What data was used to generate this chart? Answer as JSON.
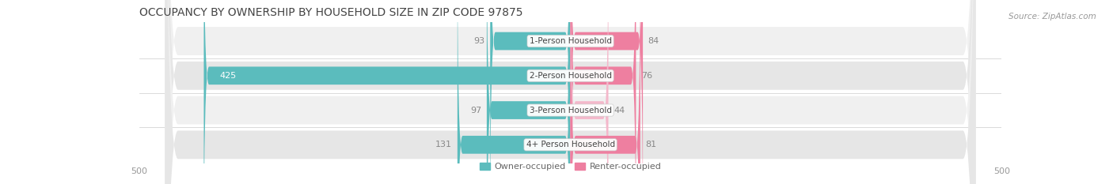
{
  "title": "OCCUPANCY BY OWNERSHIP BY HOUSEHOLD SIZE IN ZIP CODE 97875",
  "source": "Source: ZipAtlas.com",
  "categories": [
    "1-Person Household",
    "2-Person Household",
    "3-Person Household",
    "4+ Person Household"
  ],
  "owner_values": [
    93,
    425,
    97,
    131
  ],
  "renter_values": [
    84,
    76,
    44,
    81
  ],
  "owner_color": "#5bbcbd",
  "renter_color_dark": "#ee7fa0",
  "renter_color_light": "#f4b8cb",
  "renter_colors": [
    "#ee7fa0",
    "#ee7fa0",
    "#f4b8cb",
    "#ee7fa0"
  ],
  "row_bg_colors": [
    "#f0f0f0",
    "#e6e6e6",
    "#f0f0f0",
    "#e6e6e6"
  ],
  "axis_limit": 500,
  "title_fontsize": 10,
  "bar_height": 0.52,
  "figsize": [
    14.06,
    2.33
  ],
  "dpi": 100,
  "owner_label_inside": [
    false,
    true,
    false,
    false
  ],
  "owner_label_colors": [
    "#888888",
    "#ffffff",
    "#888888",
    "#888888"
  ]
}
